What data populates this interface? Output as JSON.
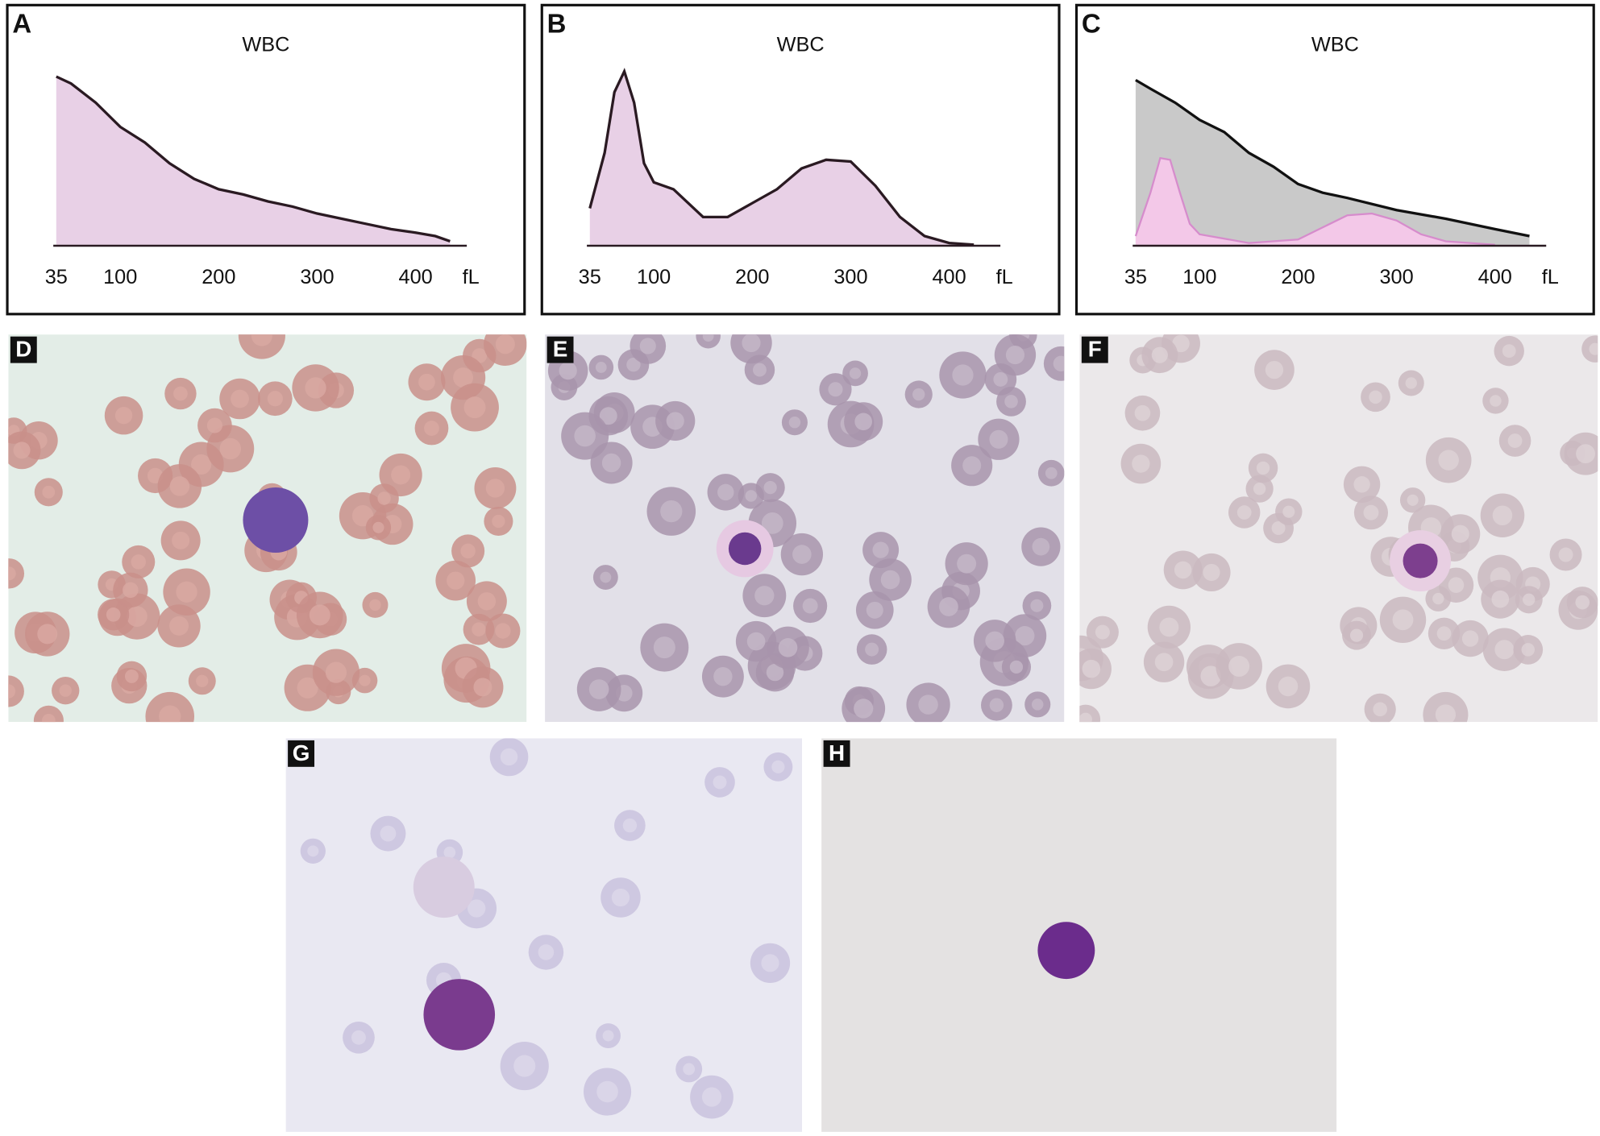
{
  "chart_data": [
    {
      "type": "area",
      "panel_label": "A",
      "title": "WBC",
      "x_unit": "fL",
      "xlim": [
        32,
        452
      ],
      "xticks": [
        35,
        100,
        200,
        300,
        400
      ],
      "ylim": [
        0,
        100
      ],
      "series": [
        {
          "x": [
            35,
            50,
            75,
            100,
            125,
            150,
            175,
            200,
            225,
            250,
            275,
            300,
            325,
            350,
            375,
            400,
            420,
            435
          ],
          "values": [
            97,
            93,
            82,
            68,
            59,
            47,
            38,
            32,
            29,
            25,
            22,
            18,
            15,
            12,
            9,
            7,
            5,
            2
          ],
          "color": "#2a1a22",
          "fill": "#e8d0e6"
        }
      ]
    },
    {
      "type": "area",
      "panel_label": "B",
      "title": "WBC",
      "x_unit": "fL",
      "xlim": [
        32,
        452
      ],
      "xticks": [
        35,
        100,
        200,
        300,
        400
      ],
      "ylim": [
        0,
        100
      ],
      "series": [
        {
          "x": [
            35,
            50,
            60,
            70,
            80,
            90,
            100,
            120,
            150,
            175,
            200,
            225,
            250,
            275,
            300,
            325,
            350,
            375,
            400,
            425
          ],
          "values": [
            21,
            53,
            88,
            100,
            82,
            47,
            36,
            32,
            16,
            16,
            24,
            32,
            44,
            49,
            48,
            34,
            16,
            5,
            1,
            0
          ],
          "color": "#2a1a22",
          "fill": "#e8d0e6"
        }
      ]
    },
    {
      "type": "area",
      "panel_label": "C",
      "title": "WBC",
      "x_unit": "fL",
      "xlim": [
        32,
        452
      ],
      "xticks": [
        35,
        100,
        200,
        300,
        400
      ],
      "ylim": [
        0,
        100
      ],
      "series": [
        {
          "x": [
            35,
            50,
            75,
            100,
            125,
            150,
            175,
            200,
            225,
            250,
            300,
            350,
            400,
            435
          ],
          "values": [
            95,
            90,
            82,
            72,
            65,
            53,
            45,
            35,
            30,
            27,
            20,
            15,
            9,
            5
          ],
          "color": "#111111",
          "fill": "#c9c9c9"
        },
        {
          "x": [
            35,
            50,
            60,
            70,
            80,
            90,
            100,
            150,
            200,
            225,
            250,
            275,
            300,
            325,
            350,
            400
          ],
          "values": [
            5,
            30,
            50,
            49,
            30,
            12,
            6,
            1,
            3,
            10,
            17,
            18,
            14,
            6,
            2,
            0
          ],
          "color": "#d68ccc",
          "fill": "#f3c8e8"
        }
      ]
    }
  ],
  "panels": [
    "D",
    "E",
    "F",
    "G",
    "H"
  ]
}
